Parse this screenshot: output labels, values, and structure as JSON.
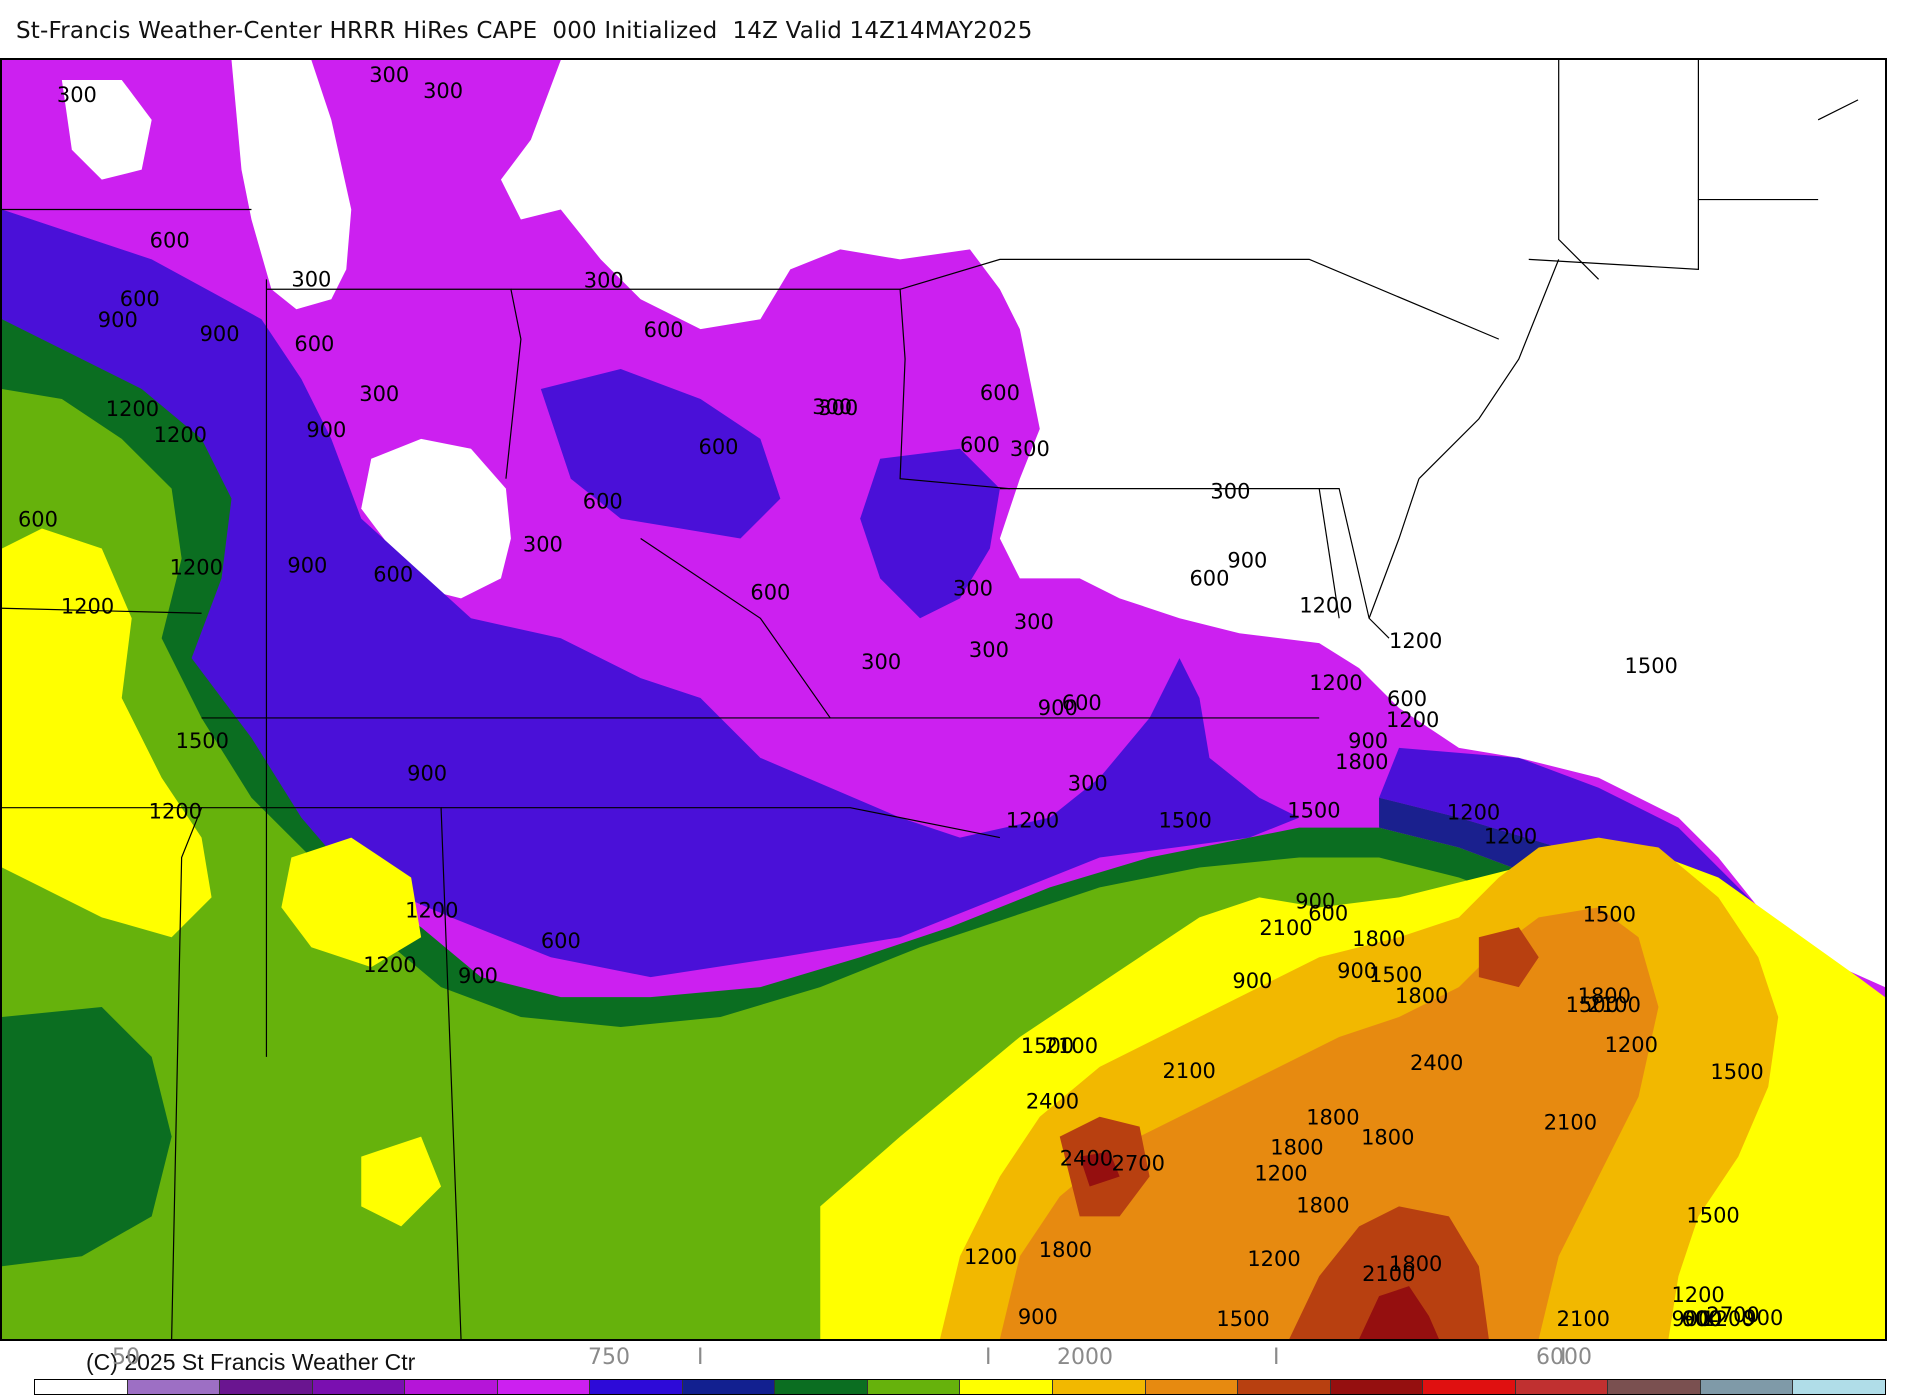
{
  "title": "St-Francis Weather-Center HRRR HiRes CAPE  000 Initialized  14Z Valid 14Z14MAY2025",
  "copyright": "(C) 2025 St Francis Weather Ctr",
  "legend": {
    "tick_labels": [
      "50",
      "750",
      "2000",
      "6000"
    ],
    "glyph_marks": [
      "I",
      "I",
      "I",
      "I"
    ],
    "colors": [
      "#ffffff",
      "#9d6fc4",
      "#6a1590",
      "#7a0fb0",
      "#b515d8",
      "#cc20f0",
      "#2d0ad8",
      "#122090",
      "#0b6e21",
      "#66b20c",
      "#ffff00",
      "#f2b800",
      "#e78a10",
      "#b84010",
      "#950f0f",
      "#e01010",
      "#c03030",
      "#7a5050",
      "#7f9aa8",
      "#b0dde8"
    ]
  },
  "map": {
    "regions": [
      {
        "name": "white-none",
        "color": "#ffffff"
      },
      {
        "name": "light-purple",
        "color": "#9d6fc4"
      },
      {
        "name": "magenta",
        "color": "#cc20f0"
      },
      {
        "name": "blue-violet",
        "color": "#4a10d8"
      },
      {
        "name": "dark-blue",
        "color": "#1a208e"
      },
      {
        "name": "dark-green",
        "color": "#0b6e21"
      },
      {
        "name": "green",
        "color": "#66b20c"
      },
      {
        "name": "yellow",
        "color": "#ffff00"
      },
      {
        "name": "orange",
        "color": "#f2b800"
      },
      {
        "name": "dark-orange",
        "color": "#e78a10"
      },
      {
        "name": "brown",
        "color": "#b84010"
      },
      {
        "name": "dark-red",
        "color": "#950f0f"
      }
    ],
    "contour_labels": [
      "300",
      "300",
      "300",
      "600",
      "600",
      "900",
      "900",
      "1200",
      "1200",
      "300",
      "600",
      "300",
      "300",
      "600",
      "900",
      "600",
      "1200",
      "1200",
      "900",
      "600",
      "300",
      "600",
      "300",
      "600",
      "600",
      "600",
      "300",
      "600",
      "300",
      "300",
      "300",
      "300",
      "300",
      "300",
      "600",
      "900",
      "1200",
      "600",
      "1200",
      "1200",
      "900",
      "1500",
      "1500",
      "900",
      "1200",
      "600",
      "300",
      "900",
      "1200",
      "1800",
      "1500",
      "1500",
      "1200",
      "1200",
      "900",
      "600",
      "900",
      "600",
      "900",
      "1200",
      "1200",
      "1500",
      "2100",
      "1800",
      "1500",
      "1800",
      "2100",
      "900",
      "1200",
      "1800",
      "1500",
      "2100",
      "1200",
      "1500",
      "2100",
      "1800",
      "1800",
      "2400",
      "1800",
      "1500",
      "2700",
      "2400",
      "2100",
      "2400",
      "1800",
      "1800",
      "1200",
      "1200",
      "1200",
      "900",
      "1800",
      "1500",
      "2100",
      "2700",
      "2100",
      "1500",
      "900",
      "900",
      "1200",
      "900",
      "600",
      "1200"
    ]
  }
}
